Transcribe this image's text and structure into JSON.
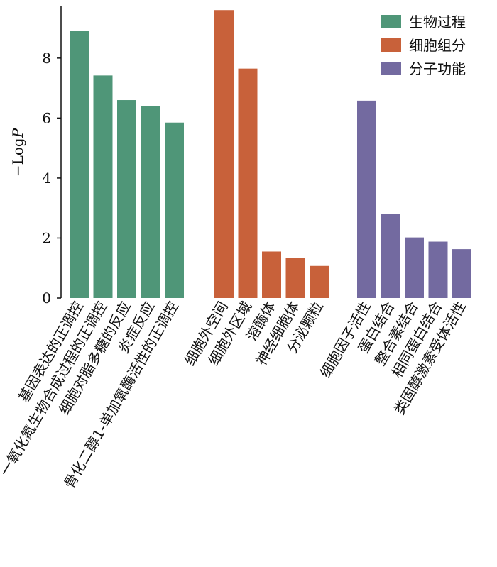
{
  "chart_data": {
    "type": "bar",
    "ylabel": "−Log",
    "ylabel_italic": "P",
    "ylim": [
      0,
      9.7
    ],
    "yticks": [
      "0",
      "2",
      "4",
      "6",
      "8"
    ],
    "grid": false,
    "legend_position": "top-right",
    "series": [
      {
        "name": "生物过程",
        "color": "#4f9678",
        "categories": [
          "基因表达的正调控",
          "一氧化氮生物合成过程的正调控",
          "细胞对脂多糖的反应",
          "炎症反应",
          "骨化二醇1-单加氧酶活性的正调控"
        ],
        "values": [
          8.9,
          7.42,
          6.6,
          6.4,
          5.85
        ]
      },
      {
        "name": "细胞组分",
        "color": "#c8613a",
        "categories": [
          "细胞外空间",
          "细胞外区域",
          "溶酶体",
          "神经细胞体",
          "分泌颗粒"
        ],
        "values": [
          9.6,
          7.65,
          1.55,
          1.33,
          1.07
        ]
      },
      {
        "name": "分子功能",
        "color": "#736aa0",
        "categories": [
          "细胞因子活性",
          "蛋白结合",
          "整合素结合",
          "相同蛋白结合",
          "类固醇激素受体活性"
        ],
        "values": [
          6.58,
          2.8,
          2.02,
          1.88,
          1.63
        ]
      }
    ]
  }
}
